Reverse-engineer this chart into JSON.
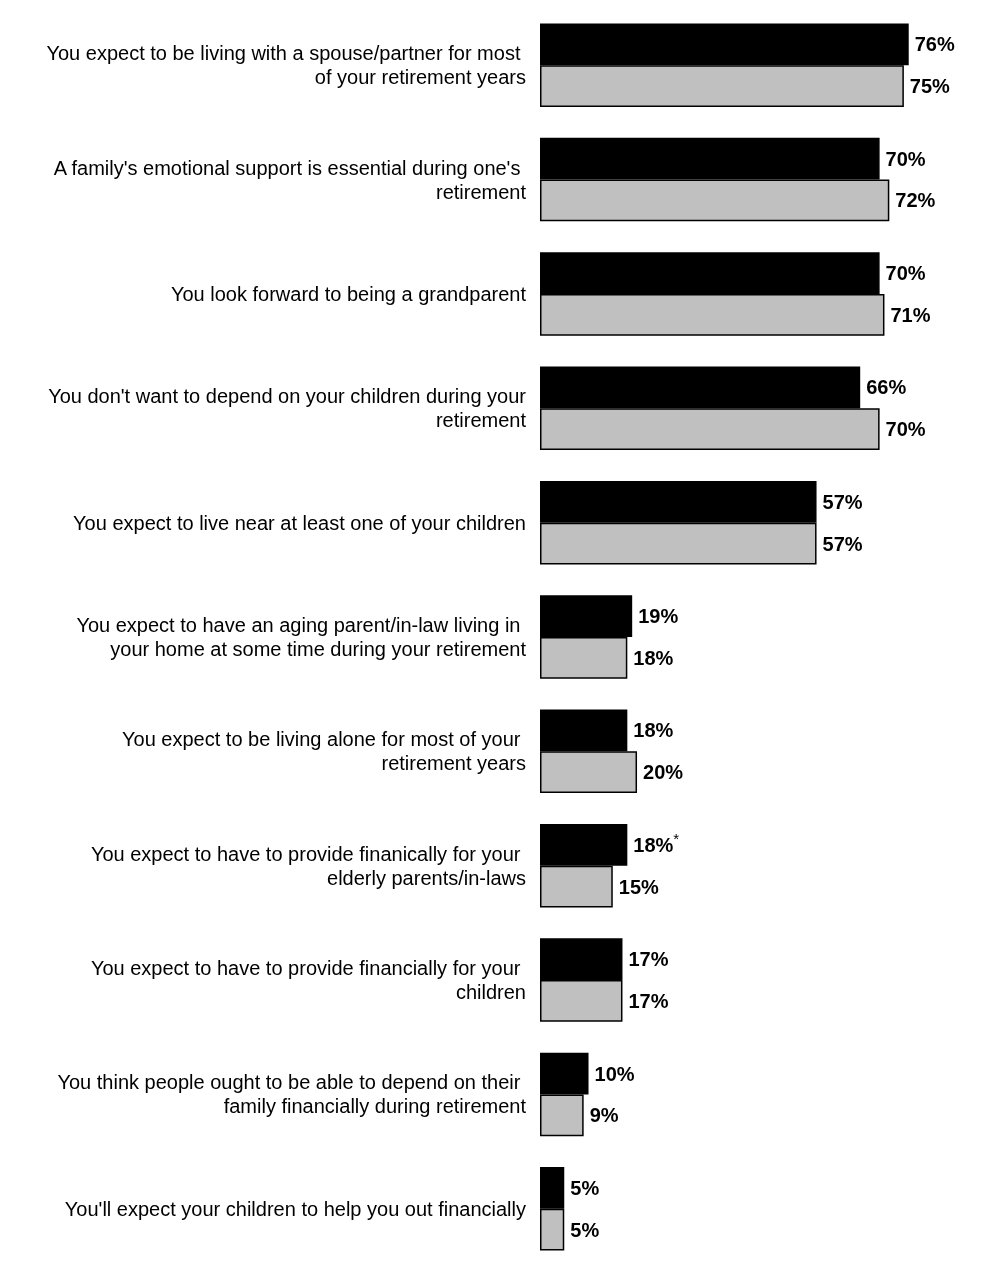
{
  "chart_data": {
    "type": "bar",
    "orientation": "horizontal",
    "categories": [
      "You expect to be living with a spouse/partner for most of your retirement years",
      "A family's emotional support is essential during one's retirement",
      "You look forward to being a grandparent",
      "You don't want to depend on your children during your retirement",
      "You expect to live near at least one of your children",
      "You expect to have an aging parent/in-law living in your home at some time during your retirement",
      "You expect to be living alone for most of your retirement years",
      "You expect to have to provide finanically for your elderly parents/in-laws",
      "You expect to have to provide financially for your children",
      "You think people ought to be able to depend on their family financially during retirement",
      "You'll expect your children to help you out financially"
    ],
    "series": [
      {
        "color": "#000000",
        "values": [
          76,
          70,
          70,
          66,
          57,
          19,
          18,
          18,
          17,
          10,
          5
        ],
        "value_labels": [
          "76%",
          "70%",
          "70%",
          "66%",
          "57%",
          "19%",
          "18%",
          "18%$^{*}$",
          "17%",
          "10%",
          "5%"
        ]
      },
      {
        "color": "#c0c0c0",
        "values": [
          75,
          72,
          71,
          70,
          57,
          18,
          20,
          15,
          17,
          9,
          5
        ],
        "value_labels": [
          "75%",
          "72%",
          "71%",
          "70%",
          "57%",
          "18%",
          "20%",
          "15%",
          "17%",
          "9%",
          "5%"
        ]
      }
    ],
    "stacked": false
  }
}
